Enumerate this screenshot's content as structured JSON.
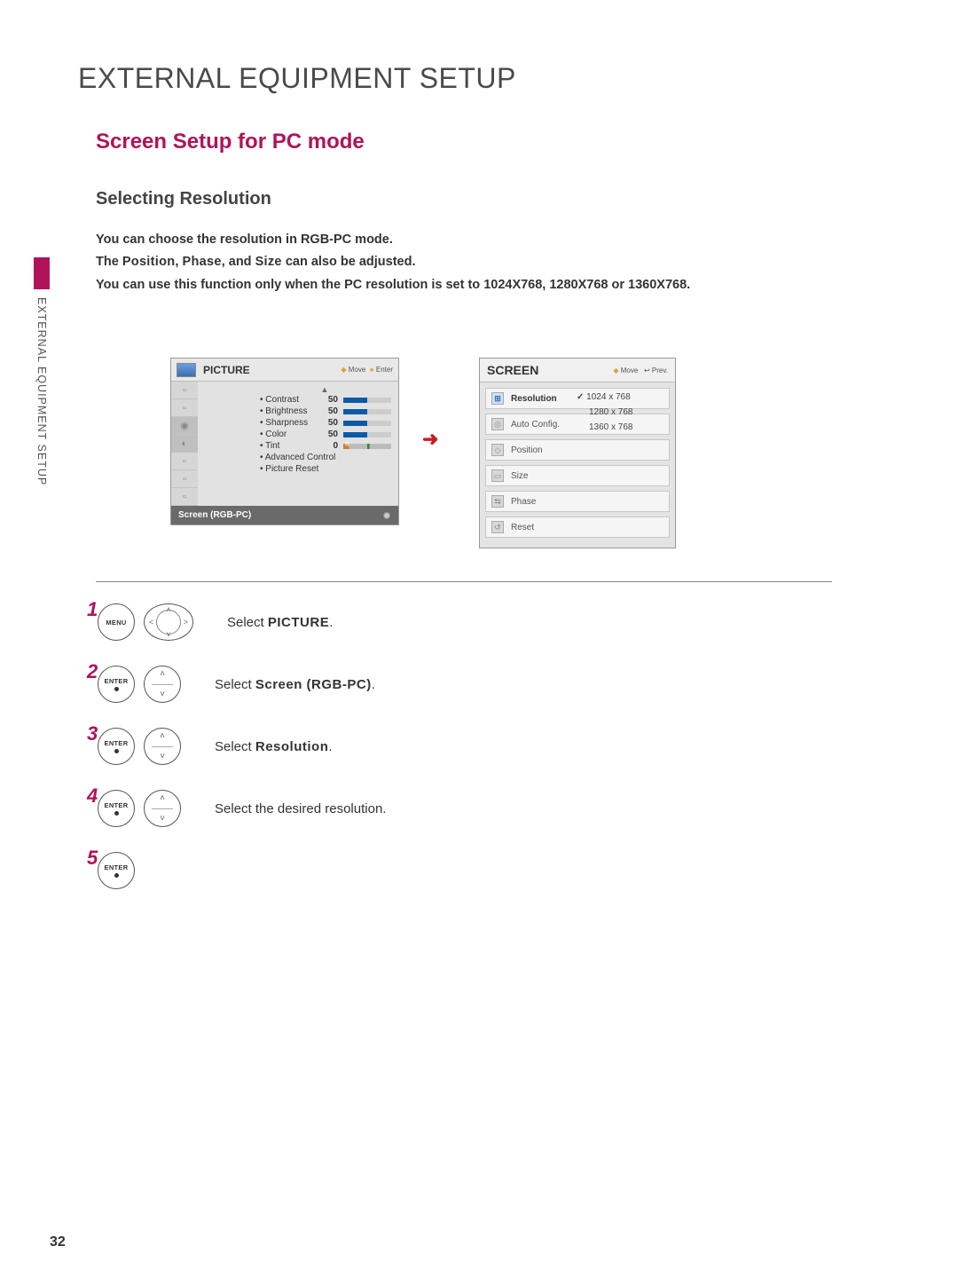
{
  "page_title": "EXTERNAL EQUIPMENT SETUP",
  "section_title": "Screen Setup for PC mode",
  "sub_title": "Selecting Resolution",
  "side_text": "EXTERNAL EQUIPMENT SETUP",
  "desc_line1": "You can choose the resolution in RGB-PC mode.",
  "desc_line2_a": "The ",
  "desc_line2_b": "Position",
  "desc_line2_c": ", ",
  "desc_line2_d": "Phase",
  "desc_line2_e": ", and ",
  "desc_line2_f": "Size",
  "desc_line2_g": " can also be adjusted.",
  "desc_line3": "You can use this function only when the PC resolution is set to 1024X768, 1280X768 or 1360X768.",
  "picture": {
    "title": "PICTURE",
    "hint_move": "Move",
    "hint_enter": "Enter",
    "rows": [
      {
        "label": "Contrast",
        "value": "50"
      },
      {
        "label": "Brightness",
        "value": "50"
      },
      {
        "label": "Sharpness",
        "value": "50"
      },
      {
        "label": "Color",
        "value": "50"
      },
      {
        "label": "Tint",
        "value": "0"
      }
    ],
    "extra1": "Advanced Control",
    "extra2": "Picture Reset",
    "footer": "Screen (RGB-PC)"
  },
  "screen": {
    "title": "SCREEN",
    "hint_move": "Move",
    "hint_prev": "Prev.",
    "items": [
      "Resolution",
      "Auto Config.",
      "Position",
      "Size",
      "Phase",
      "Reset"
    ],
    "resolutions": [
      "1024 x 768",
      "1280 x 768",
      "1360 x 768"
    ],
    "selected_res": 0
  },
  "steps": {
    "s1": {
      "num": "1",
      "btn": "MENU",
      "text_a": "Select ",
      "text_b": "PICTURE",
      "text_c": "."
    },
    "s2": {
      "num": "2",
      "btn": "ENTER",
      "text_a": "Select ",
      "text_b": "Screen (RGB-PC)",
      "text_c": "."
    },
    "s3": {
      "num": "3",
      "btn": "ENTER",
      "text_a": "Select ",
      "text_b": "Resolution",
      "text_c": "."
    },
    "s4": {
      "num": "4",
      "btn": "ENTER",
      "text_a": "Select the desired resolution."
    },
    "s5": {
      "num": "5",
      "btn": "ENTER"
    }
  },
  "page_number": "32",
  "colors": {
    "accent": "#b0135a"
  }
}
